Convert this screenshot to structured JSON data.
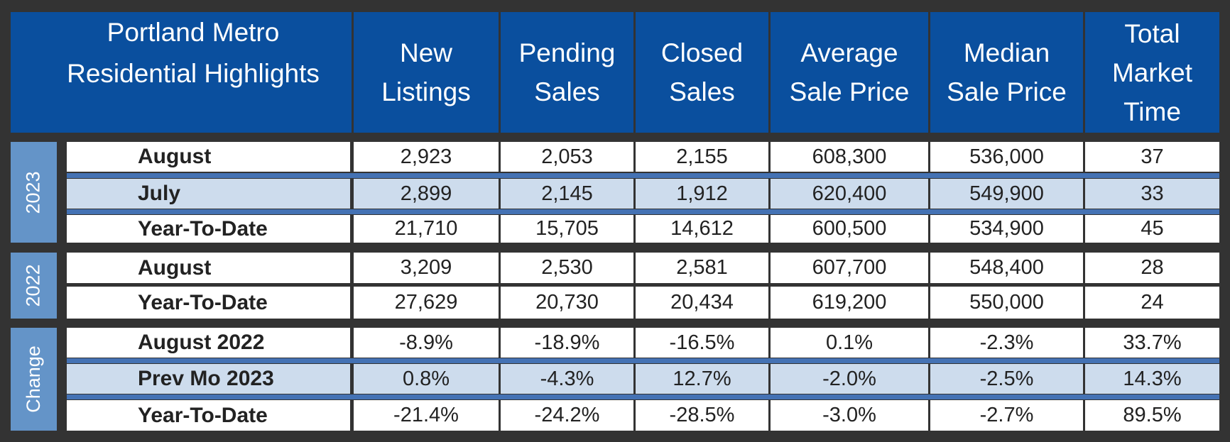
{
  "header": {
    "title_line1": "Portland Metro",
    "title_line2": "Residential Highlights",
    "columns": [
      {
        "l1": "New",
        "l2": "Listings",
        "l3": ""
      },
      {
        "l1": "Pending",
        "l2": "Sales",
        "l3": ""
      },
      {
        "l1": "Closed",
        "l2": "Sales",
        "l3": ""
      },
      {
        "l1": "Average",
        "l2": "Sale Price",
        "l3": ""
      },
      {
        "l1": "Median",
        "l2": "Sale Price",
        "l3": ""
      },
      {
        "l1": "Total",
        "l2": "Market",
        "l3": "Time"
      }
    ]
  },
  "groups": [
    "2023",
    "2022",
    "Change"
  ],
  "rows": [
    {
      "label": "August",
      "values": [
        "2,923",
        "2,053",
        "2,155",
        "608,300",
        "536,000",
        "37"
      ]
    },
    {
      "label": "July",
      "values": [
        "2,899",
        "2,145",
        "1,912",
        "620,400",
        "549,900",
        "33"
      ]
    },
    {
      "label": "Year-To-Date",
      "values": [
        "21,710",
        "15,705",
        "14,612",
        "600,500",
        "534,900",
        "45"
      ]
    },
    {
      "label": "August",
      "values": [
        "3,209",
        "2,530",
        "2,581",
        "607,700",
        "548,400",
        "28"
      ]
    },
    {
      "label": "Year-To-Date",
      "values": [
        "27,629",
        "20,730",
        "20,434",
        "619,200",
        "550,000",
        "24"
      ]
    },
    {
      "label": "August 2022",
      "values": [
        "-8.9%",
        "-18.9%",
        "-16.5%",
        "0.1%",
        "-2.3%",
        "33.7%"
      ]
    },
    {
      "label": "Prev Mo 2023",
      "values": [
        "0.8%",
        "-4.3%",
        "12.7%",
        "-2.0%",
        "-2.5%",
        "14.3%"
      ]
    },
    {
      "label": "Year-To-Date",
      "values": [
        "-21.4%",
        "-24.2%",
        "-28.5%",
        "-3.0%",
        "-2.7%",
        "89.5%"
      ]
    }
  ],
  "colors": {
    "header_bg": "#0a4f9e",
    "group_bg": "#6494c8",
    "shaded_row_bg": "#cddced",
    "separator": "#4472b4",
    "frame": "#333333"
  }
}
